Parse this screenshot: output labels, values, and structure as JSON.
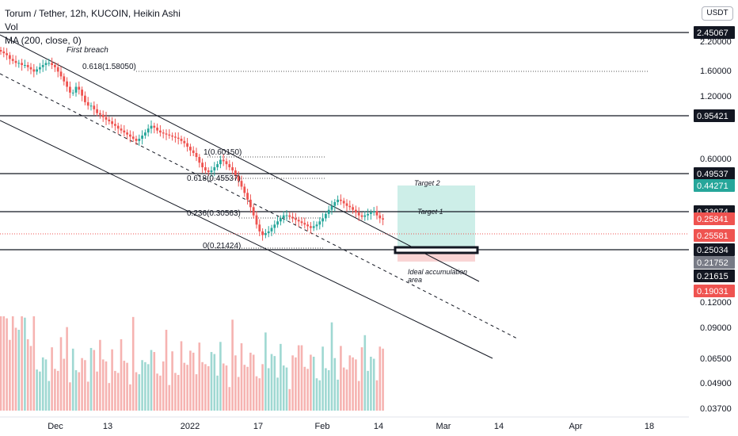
{
  "header": {
    "title": "Torum / Tether, 12h, KUCOIN, Heikin Ashi",
    "vol_label": "Vol",
    "ma_label": "MA (200, close, 0)"
  },
  "currency_button": "USDT",
  "colors": {
    "up": "#26a69a",
    "down": "#ef5350",
    "vol_up": "#9fd8d2",
    "vol_down": "#f6b3b1",
    "target_zone": "#cdeee8",
    "stop_zone": "#f9d4d4"
  },
  "chart_data": {
    "type": "candlestick",
    "symbol": "Torum / Tether",
    "interval": "12h",
    "exchange": "KUCOIN",
    "candle_style": "Heikin Ashi",
    "scale": "log",
    "x_ticks": [
      "Dec",
      "13",
      "2022",
      "17",
      "Feb",
      "14",
      "Mar",
      "14",
      "Apr",
      "18"
    ],
    "y_ticks": [
      "2.20000",
      "1.60000",
      "1.20000",
      "0.60000",
      "0.12000",
      "0.09000",
      "0.06500",
      "0.04900",
      "0.03700"
    ],
    "horizontal_levels": [
      {
        "price": "2.45067",
        "label": "2.45067"
      },
      {
        "price": "0.95421",
        "label": "0.95421"
      },
      {
        "price": "0.49537",
        "label": "0.49537"
      },
      {
        "price": "0.33074",
        "label": "0.33074"
      },
      {
        "price": "0.25034",
        "label": "0.25034"
      }
    ],
    "price_labels": [
      {
        "label": "0.44271",
        "color": "#26a69a"
      },
      {
        "label": "0.25841",
        "color": "#ef5350"
      },
      {
        "label": "0.25581",
        "color": "#ef5350"
      },
      {
        "label": "0.21752",
        "color": "#787b86"
      },
      {
        "label": "0.21615",
        "color": "#131722"
      },
      {
        "label": "0.19031",
        "color": "#ef5350"
      }
    ],
    "fib_labels": [
      "0.618(1.58050)",
      "1(0.60150)",
      "0.618(0.45537)",
      "0.236(0.30563)",
      "0(0.21424)"
    ],
    "annotations": [
      "First breach",
      "Target 2",
      "Target 1",
      "Ideal accumulation area"
    ],
    "close_series": [
      2.2,
      2.15,
      2.1,
      2.0,
      1.95,
      1.9,
      1.9,
      1.85,
      1.85,
      1.8,
      1.75,
      1.7,
      1.75,
      1.8,
      1.85,
      1.9,
      1.9,
      1.85,
      1.8,
      1.7,
      1.6,
      1.5,
      1.4,
      1.3,
      1.3,
      1.4,
      1.35,
      1.25,
      1.15,
      1.1,
      1.1,
      1.05,
      1.0,
      0.98,
      0.95,
      0.92,
      0.9,
      0.87,
      0.85,
      0.82,
      0.8,
      0.78,
      0.76,
      0.74,
      0.72,
      0.7,
      0.72,
      0.75,
      0.78,
      0.82,
      0.85,
      0.83,
      0.8,
      0.78,
      0.77,
      0.76,
      0.75,
      0.74,
      0.73,
      0.72,
      0.7,
      0.68,
      0.65,
      0.62,
      0.6,
      0.57,
      0.53,
      0.5,
      0.48,
      0.47,
      0.48,
      0.5,
      0.52,
      0.55,
      0.54,
      0.52,
      0.5,
      0.48,
      0.45,
      0.42,
      0.39,
      0.36,
      0.33,
      0.3,
      0.27,
      0.24,
      0.22,
      0.21,
      0.215,
      0.22,
      0.23,
      0.24,
      0.25,
      0.26,
      0.27,
      0.27,
      0.265,
      0.26,
      0.255,
      0.25,
      0.245,
      0.24,
      0.235,
      0.23,
      0.235,
      0.24,
      0.25,
      0.26,
      0.275,
      0.29,
      0.305,
      0.32,
      0.33,
      0.325,
      0.315,
      0.305,
      0.3,
      0.29,
      0.28,
      0.27,
      0.265,
      0.27,
      0.275,
      0.28,
      0.285,
      0.27,
      0.26,
      0.256
    ]
  }
}
